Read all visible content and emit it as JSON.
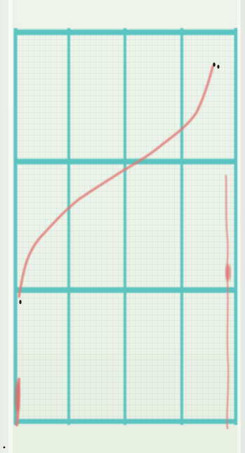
{
  "image": {
    "subject": "strip-chart-recording",
    "grid_color": "#5cc4c0",
    "fine_grid_color": "#b9ddd2",
    "trace_color": "#e07b76",
    "paper_color": "#e9f1e5",
    "mark_color": "#1b1b1b"
  }
}
